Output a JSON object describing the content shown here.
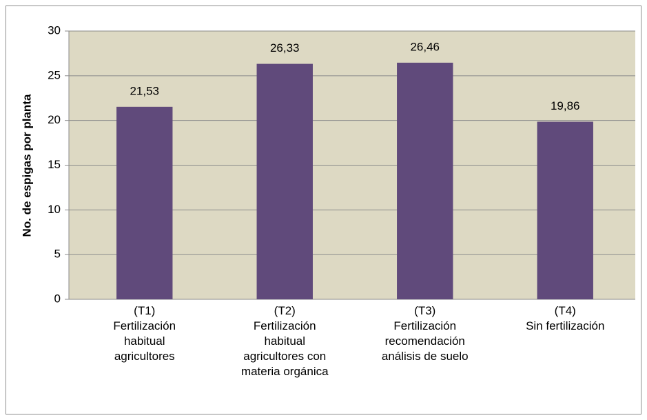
{
  "chart_data": {
    "type": "bar",
    "y_label": "No. de espigas por planta",
    "categories": [
      "(T1)\nFertilización\nhabitual\nagricultores",
      "(T2)\nFertilización\nhabitual\nagricultores con\nmateria orgánica",
      "(T3)\nFertilización\nrecomendación\nanálisis de suelo",
      "(T4)\nSin fertilización"
    ],
    "values": [
      21.53,
      26.33,
      26.46,
      19.86
    ],
    "value_labels": [
      "21,53",
      "26,33",
      "26,46",
      "19,86"
    ],
    "color": "#604a7b",
    "ylim": [
      0,
      30
    ],
    "yticks": [
      0,
      5,
      10,
      15,
      20,
      25,
      30
    ],
    "grid": true
  }
}
